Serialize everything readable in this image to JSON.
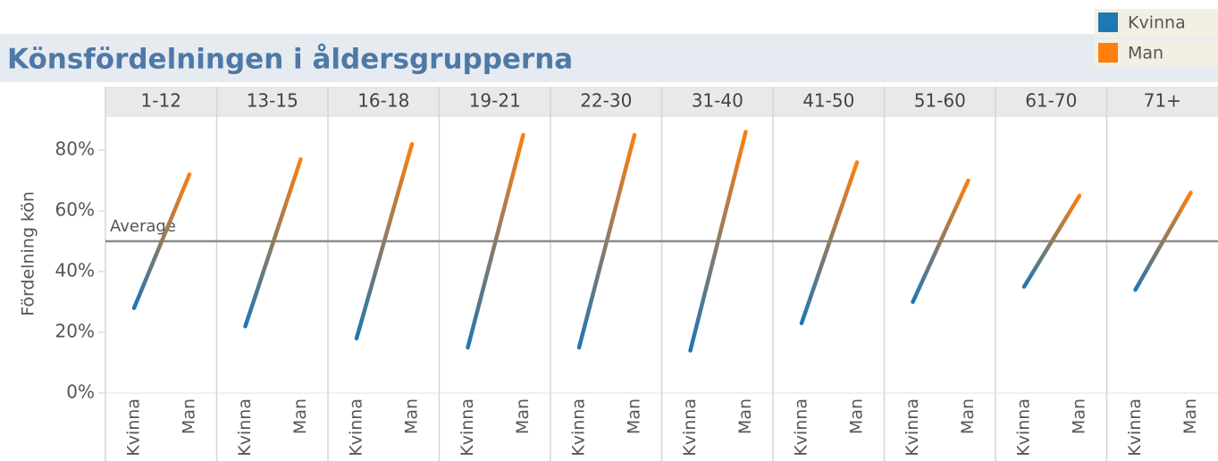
{
  "chart_data": {
    "type": "line",
    "title": "Könsfördelningen i åldersgrupperna",
    "y_label": "Fördelning kön",
    "categories": [
      "1-12",
      "13-15",
      "16-18",
      "19-21",
      "22-30",
      "31-40",
      "41-50",
      "51-60",
      "61-70",
      "71+"
    ],
    "series": [
      {
        "name": "Kvinna",
        "color": "#1f77b4",
        "values": [
          28,
          22,
          18,
          15,
          15,
          14,
          23,
          30,
          35,
          34
        ]
      },
      {
        "name": "Man",
        "color": "#ff7f0e",
        "values": [
          72,
          77,
          82,
          85,
          85,
          86,
          76,
          70,
          65,
          66
        ]
      }
    ],
    "ylim": [
      0,
      90
    ],
    "yticks": [
      {
        "value": 0,
        "label": "0%"
      },
      {
        "value": 20,
        "label": "20%"
      },
      {
        "value": 40,
        "label": "40%"
      },
      {
        "value": 60,
        "label": "60%"
      },
      {
        "value": 80,
        "label": "80%"
      }
    ],
    "annotation": {
      "label": "Average",
      "value": 50
    },
    "legend": "top-right"
  }
}
